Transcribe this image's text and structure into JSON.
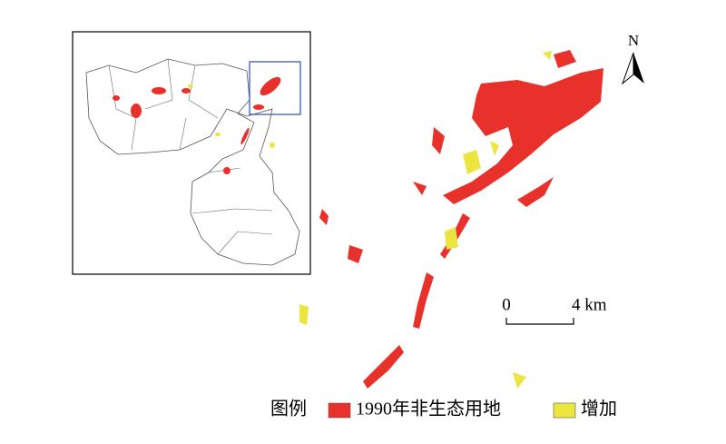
{
  "north_arrow": {
    "label": "N"
  },
  "scale_bar": {
    "start": "0",
    "end": "4 km"
  },
  "legend": {
    "title": "图例",
    "items": [
      {
        "label": "1990年非生态用地",
        "color": "#e8312a"
      },
      {
        "label": "增加",
        "color": "#ece53f"
      }
    ]
  }
}
